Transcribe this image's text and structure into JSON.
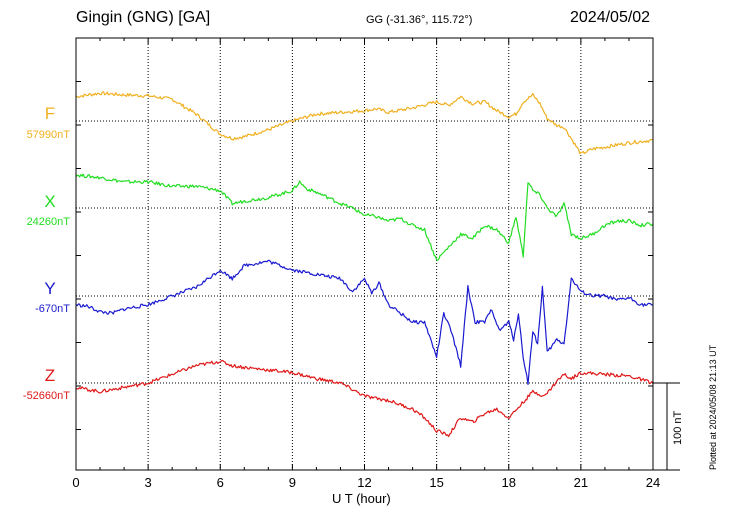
{
  "header": {
    "station": "Gingin (GNG)  [GA]",
    "coords": "GG (-31.36°, 115.72°)",
    "date": "2024/05/02"
  },
  "footer": {
    "plotted": "Plotted at 2024/05/08 21:13 UT"
  },
  "colors": {
    "F": "#f0b020",
    "X": "#22dd22",
    "Y": "#1a1ad0",
    "Z": "#e01818"
  },
  "chart_data": {
    "type": "line",
    "xlabel": "U T (hour)",
    "xlim": [
      0,
      24
    ],
    "xticks": [
      "0",
      "3",
      "6",
      "9",
      "12",
      "15",
      "18",
      "21",
      "24"
    ],
    "scale_bar": {
      "value": 100,
      "label": "100 nT"
    },
    "series": [
      {
        "name": "F",
        "baseline": 57990,
        "baseline_label": "57990nT",
        "color": "#f0b020",
        "x": [
          0,
          1,
          2,
          3,
          4,
          5,
          6,
          6.5,
          7,
          8,
          9,
          10,
          11,
          12,
          12.5,
          13,
          14,
          15,
          15.5,
          16,
          16.5,
          17,
          17.5,
          18,
          18.3,
          18.6,
          19,
          19.3,
          19.6,
          20,
          20.3,
          20.6,
          21,
          21.5,
          22,
          23,
          24
        ],
        "y": [
          28,
          32,
          30,
          29,
          25,
          8,
          -15,
          -20,
          -18,
          -10,
          0,
          8,
          10,
          12,
          14,
          10,
          15,
          22,
          18,
          28,
          20,
          22,
          12,
          5,
          8,
          22,
          30,
          20,
          3,
          -5,
          -7,
          -20,
          -38,
          -32,
          -30,
          -25,
          -22
        ]
      },
      {
        "name": "X",
        "baseline": 24260,
        "baseline_label": "24260nT",
        "color": "#22dd22",
        "x": [
          0,
          1,
          2,
          3,
          4,
          5,
          6,
          6.5,
          7,
          8,
          9,
          9.3,
          9.6,
          10,
          10.5,
          11,
          11.5,
          12,
          12.5,
          13,
          13.5,
          14,
          14.5,
          15,
          15.5,
          16,
          16.5,
          17,
          17.5,
          18,
          18.3,
          18.6,
          18.8,
          19,
          19.3,
          19.6,
          20,
          20.3,
          20.6,
          21,
          21.5,
          22,
          22.5,
          23,
          23.5,
          24
        ],
        "y": [
          38,
          35,
          30,
          30,
          25,
          25,
          20,
          5,
          8,
          12,
          20,
          30,
          22,
          18,
          12,
          5,
          0,
          -8,
          -10,
          -15,
          -12,
          -20,
          -25,
          -60,
          -45,
          -30,
          -35,
          -20,
          -25,
          -40,
          -10,
          -55,
          30,
          20,
          15,
          0,
          -10,
          5,
          -30,
          -35,
          -30,
          -20,
          -15,
          -15,
          -20,
          -18
        ]
      },
      {
        "name": "Y",
        "baseline": -670,
        "baseline_label": "-670nT",
        "color": "#1a1ad0",
        "x": [
          0,
          0.5,
          1,
          1.5,
          2,
          3,
          4,
          5,
          6,
          6.5,
          7,
          8,
          9,
          10,
          11,
          11.5,
          12,
          12.3,
          12.6,
          13,
          13.5,
          14,
          14.5,
          15,
          15.3,
          15.6,
          16,
          16.3,
          16.6,
          17,
          17.3,
          17.6,
          18,
          18.2,
          18.4,
          18.6,
          18.8,
          19,
          19.2,
          19.4,
          19.6,
          20,
          20.3,
          20.6,
          21,
          21.5,
          22,
          22.5,
          23,
          23.5,
          24
        ],
        "y": [
          -10,
          -12,
          -18,
          -20,
          -15,
          -10,
          0,
          10,
          30,
          20,
          35,
          40,
          30,
          25,
          20,
          5,
          20,
          3,
          15,
          -10,
          -20,
          -30,
          -30,
          -70,
          -20,
          -40,
          -80,
          10,
          -30,
          -30,
          -15,
          -40,
          -30,
          -50,
          -20,
          -70,
          -100,
          -40,
          -55,
          10,
          -65,
          -50,
          -55,
          20,
          5,
          0,
          0,
          -5,
          -2,
          -10,
          -10
        ]
      },
      {
        "name": "Z",
        "baseline": -52660,
        "baseline_label": "-52660nT",
        "color": "#e01818",
        "x": [
          0,
          1,
          2,
          3,
          4,
          5,
          6,
          6.5,
          7,
          8,
          9,
          10,
          11,
          12,
          12.5,
          13,
          14,
          14.5,
          15,
          15.5,
          16,
          16.5,
          17,
          17.5,
          18,
          18.5,
          19,
          19.5,
          20,
          20.3,
          20.6,
          21,
          22,
          23,
          24
        ],
        "y": [
          -5,
          -10,
          -5,
          0,
          10,
          20,
          25,
          20,
          18,
          15,
          12,
          5,
          0,
          -15,
          -18,
          -20,
          -30,
          -40,
          -55,
          -60,
          -40,
          -45,
          -35,
          -30,
          -40,
          -25,
          -10,
          -15,
          2,
          10,
          5,
          12,
          10,
          8,
          0
        ]
      }
    ]
  }
}
